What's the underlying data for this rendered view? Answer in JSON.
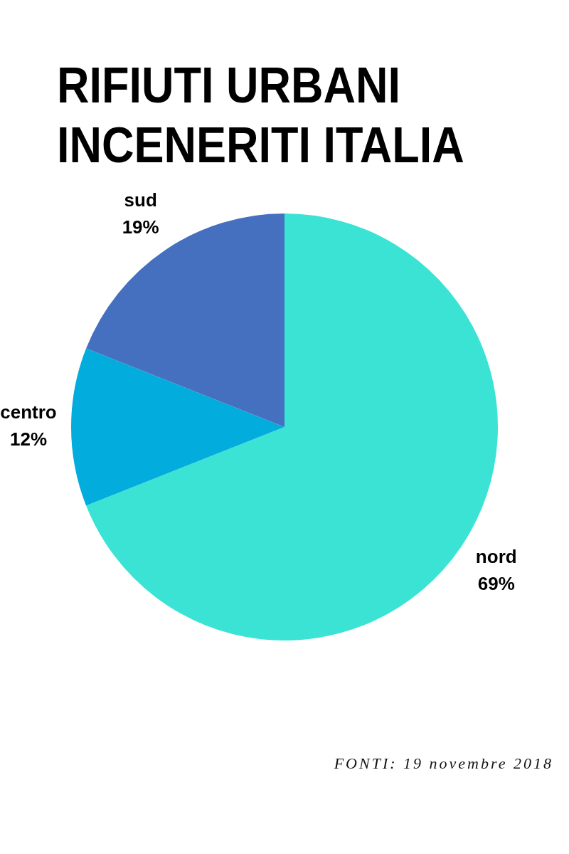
{
  "chart_data": {
    "type": "pie",
    "title": "RIFIUTI URBANI\nINCENERITI ITALIA",
    "categories": [
      "nord",
      "centro",
      "sud"
    ],
    "values": [
      69,
      12,
      19
    ],
    "value_labels": [
      "69%",
      "12%",
      "19%"
    ],
    "colors": [
      "#3ae3d4",
      "#02acdc",
      "#4470bf"
    ],
    "legend": false,
    "annotations": [
      "FONTI: 19 novembre 2018"
    ]
  }
}
